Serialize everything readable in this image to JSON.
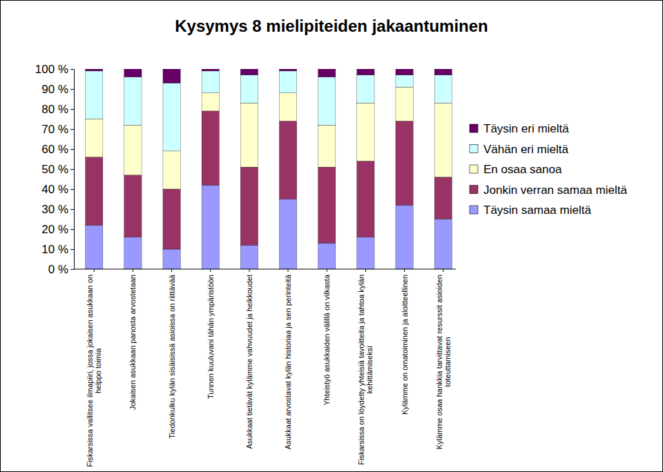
{
  "chart_data": {
    "type": "bar",
    "stacked": true,
    "title": "Kysymys 8 mielipiteiden jakaantuminen",
    "categories": [
      "Fiskarsissa vallitsee ilmapiiri, jossa jokaisen asukkaan on helppo toimia",
      "Jokaisen asukkaan panosta arvostetaan",
      "Tiedonkulku kylän sisäisissä asioissa on riittävää",
      "Tunnen kuuluvani tähän ympäristöön",
      "Asukkaat tietävät kylämme vahvuudet ja heikkoudet",
      "Asukkaat arvostavat kylän historiaa ja sen perinteitä",
      "Yhteistyö asukkaiden välillä on vilkasta",
      "Fiskarsissa on löydetty yhteisiä tavoitteita ja tahtoa kylän kehittämiseksi",
      "Kylämme on omatoiminen ja aloitteellinen",
      "Kylämme osaa hankkia tarvittavat resurssit asioiden toteuttamiseen"
    ],
    "series": [
      {
        "name": "Täysin samaa mieltä",
        "color": "#9999ff",
        "values": [
          22,
          16,
          10,
          42,
          12,
          35,
          13,
          16,
          32,
          25
        ]
      },
      {
        "name": "Jonkin verran samaa mieltä",
        "color": "#993366",
        "values": [
          34,
          31,
          30,
          37,
          39,
          39,
          38,
          38,
          42,
          21
        ]
      },
      {
        "name": "En osaa sanoa",
        "color": "#ffffcc",
        "values": [
          19,
          25,
          19,
          9,
          32,
          14,
          21,
          29,
          17,
          37
        ]
      },
      {
        "name": "Vähän eri mieltä",
        "color": "#ccffff",
        "values": [
          24,
          24,
          34,
          11,
          14,
          11,
          24,
          14,
          6,
          14
        ]
      },
      {
        "name": "Täysin eri mieltä",
        "color": "#660066",
        "values": [
          1,
          4,
          7,
          1,
          3,
          1,
          4,
          3,
          3,
          3
        ]
      }
    ],
    "ylim": [
      0,
      100
    ],
    "yticks": [
      {
        "value": 0,
        "label": "0 %"
      },
      {
        "value": 10,
        "label": "10 %"
      },
      {
        "value": 20,
        "label": "20 %"
      },
      {
        "value": 30,
        "label": "30 %"
      },
      {
        "value": 40,
        "label": "40 %"
      },
      {
        "value": 50,
        "label": "50 %"
      },
      {
        "value": 60,
        "label": "60 %"
      },
      {
        "value": 70,
        "label": "70 %"
      },
      {
        "value": 80,
        "label": "80 %"
      },
      {
        "value": 90,
        "label": "90 %"
      },
      {
        "value": 100,
        "label": "100 %"
      }
    ],
    "grid": false,
    "legend": "right"
  }
}
